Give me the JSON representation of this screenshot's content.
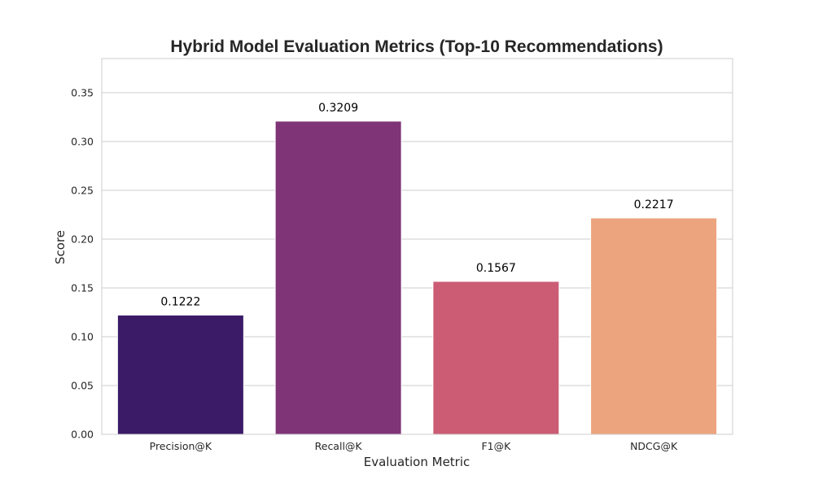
{
  "chart_data": {
    "type": "bar",
    "title": "Hybrid Model Evaluation Metrics (Top-10 Recommendations)",
    "xlabel": "Evaluation Metric",
    "ylabel": "Score",
    "categories": [
      "Precision@K",
      "Recall@K",
      "F1@K",
      "NDCG@K"
    ],
    "values": [
      0.1222,
      0.3209,
      0.1567,
      0.2217
    ],
    "data_labels": [
      "0.1222",
      "0.3209",
      "0.1567",
      "0.2217"
    ],
    "colors": [
      "#3b1a67",
      "#7f3477",
      "#cb5c74",
      "#eca47e"
    ],
    "ylim": [
      0,
      0.385
    ],
    "yticks": [
      0,
      0.05,
      0.1,
      0.15,
      0.2,
      0.25,
      0.3,
      0.35
    ],
    "ytick_labels": [
      "0.00",
      "0.05",
      "0.10",
      "0.15",
      "0.20",
      "0.25",
      "0.30",
      "0.35"
    ],
    "grid": true,
    "legend": "none"
  }
}
